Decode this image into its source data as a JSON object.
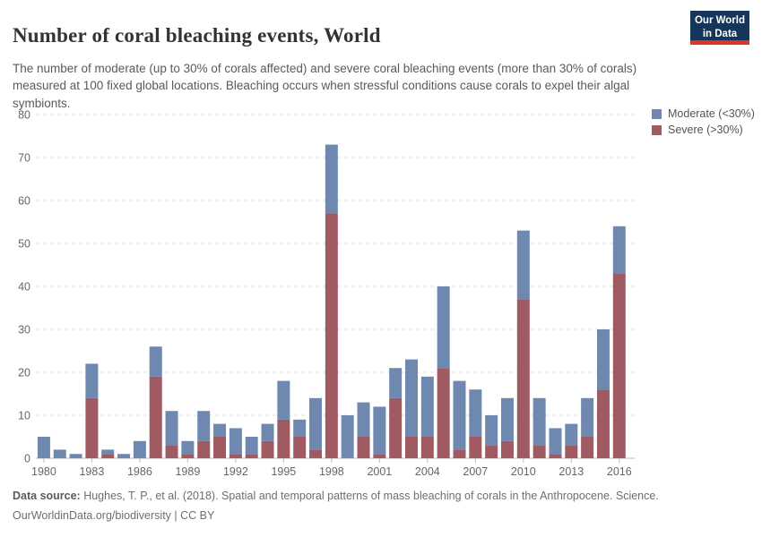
{
  "header": {
    "title": "Number of coral bleaching events, World",
    "logo": {
      "line1": "Our World",
      "line2": "in Data"
    }
  },
  "subtitle": "The number of moderate (up to 30% of corals affected) and severe coral bleaching events (more than 30% of corals) measured at 100 fixed global locations. Bleaching occurs when stressful conditions cause corals to expel their algal symbionts.",
  "legend": [
    {
      "label": "Moderate (<30%)",
      "color": "#6f88b0"
    },
    {
      "label": "Severe (>30%)",
      "color": "#a05a62"
    }
  ],
  "footer": {
    "source_label": "Data source:",
    "source_text": " Hughes, T. P., et al. (2018). Spatial and temporal patterns of mass bleaching of corals in the Anthropocene. Science.",
    "license": "OurWorldinData.org/biodiversity | CC BY"
  },
  "colors": {
    "moderate": "#6f88b0",
    "severe": "#a05a62",
    "grid": "#e0e0e0",
    "axis_line": "#bdbdbd",
    "axis_text": "#666666",
    "logo_bg": "#15355a",
    "logo_stripe": "#dc352c"
  },
  "chart_data": {
    "type": "bar",
    "stacked": true,
    "title": "Number of coral bleaching events, World",
    "xlabel": "",
    "ylabel": "",
    "ylim": [
      0,
      80
    ],
    "yticks": [
      0,
      10,
      20,
      30,
      40,
      50,
      60,
      70,
      80
    ],
    "grid": "horizontal-dashed",
    "legend_position": "top-right",
    "categories": [
      1980,
      1981,
      1982,
      1983,
      1984,
      1985,
      1986,
      1987,
      1988,
      1989,
      1990,
      1991,
      1992,
      1993,
      1994,
      1995,
      1996,
      1997,
      1998,
      1999,
      2000,
      2001,
      2002,
      2003,
      2004,
      2005,
      2006,
      2007,
      2008,
      2009,
      2010,
      2011,
      2012,
      2013,
      2014,
      2015,
      2016
    ],
    "xtick_labels": [
      "1980",
      "1983",
      "1986",
      "1989",
      "1992",
      "1995",
      "1998",
      "2001",
      "2004",
      "2007",
      "2010",
      "2013",
      "2016"
    ],
    "series": [
      {
        "name": "Severe (>30%)",
        "color": "#a05a62",
        "values": [
          0,
          0,
          0,
          14,
          1,
          0,
          0,
          19,
          3,
          1,
          4,
          5,
          1,
          1,
          4,
          9,
          5,
          2,
          57,
          0,
          5,
          1,
          14,
          5,
          5,
          21,
          2,
          5,
          3,
          4,
          37,
          3,
          1,
          3,
          5,
          16,
          43
        ]
      },
      {
        "name": "Moderate (<30%)",
        "color": "#6f88b0",
        "values": [
          5,
          2,
          1,
          8,
          1,
          1,
          4,
          7,
          8,
          3,
          7,
          3,
          6,
          4,
          4,
          9,
          4,
          12,
          16,
          10,
          8,
          11,
          7,
          18,
          14,
          19,
          16,
          11,
          7,
          10,
          16,
          11,
          6,
          5,
          9,
          14,
          11
        ]
      }
    ],
    "totals": [
      5,
      2,
      1,
      22,
      2,
      1,
      4,
      26,
      11,
      4,
      11,
      8,
      7,
      5,
      8,
      18,
      9,
      14,
      73,
      10,
      13,
      12,
      21,
      23,
      19,
      40,
      18,
      16,
      10,
      14,
      53,
      14,
      7,
      8,
      14,
      30,
      54
    ]
  }
}
